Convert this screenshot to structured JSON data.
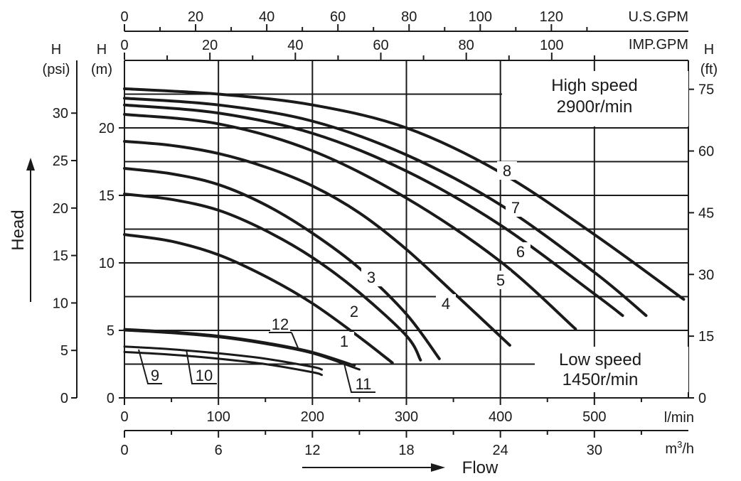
{
  "chart_data": {
    "type": "line",
    "x": {
      "unit": "l/min",
      "ticks": [
        "0",
        "100",
        "200",
        "300",
        "400",
        "500"
      ],
      "unit_label": "l/min",
      "range": [
        0,
        600
      ]
    },
    "secondary_x_axes": {
      "m3h": {
        "unit": "m³/h",
        "label_base": "m",
        "label_sup": "3",
        "label_tail": "/h",
        "ticks": [
          "0",
          "6",
          "12",
          "18",
          "24",
          "30"
        ]
      },
      "usgpm": {
        "unit": "U.S.GPM",
        "ticks": [
          "0",
          "20",
          "40",
          "60",
          "80",
          "100",
          "120"
        ]
      },
      "impgpm": {
        "unit": "IMP.GPM",
        "ticks": [
          "0",
          "20",
          "40",
          "60",
          "80",
          "100"
        ]
      }
    },
    "y": {
      "unit": "m",
      "label_top": "H",
      "label_unit": "(m)",
      "ticks": [
        "0",
        "5",
        "10",
        "15",
        "20"
      ],
      "range": [
        0,
        25
      ]
    },
    "secondary_y_axes": {
      "psi": {
        "label_top": "H",
        "label_unit": "(psi)",
        "ticks": [
          "0",
          "5",
          "10",
          "15",
          "20",
          "25",
          "30"
        ]
      },
      "ft": {
        "label_top": "H",
        "label_unit": "(ft)",
        "ticks": [
          "0",
          "15",
          "30",
          "45",
          "60",
          "75"
        ]
      }
    },
    "axis_titles": {
      "y": "Head",
      "x": "Flow"
    },
    "annotations": {
      "high_speed": {
        "title": "High speed",
        "rpm": "2900r/min"
      },
      "low_speed": {
        "title": "Low speed",
        "rpm": "1450r/min"
      }
    },
    "grid": true,
    "series": [
      {
        "name": "1",
        "x": [
          0,
          50,
          100,
          150,
          200,
          250,
          285
        ],
        "y": [
          12.1,
          11.6,
          10.6,
          9.0,
          7.0,
          4.5,
          2.6
        ]
      },
      {
        "name": "2",
        "x": [
          0,
          50,
          100,
          150,
          200,
          250,
          300,
          315
        ],
        "y": [
          15.1,
          14.7,
          13.9,
          12.4,
          10.4,
          7.8,
          4.6,
          2.8
        ]
      },
      {
        "name": "3",
        "x": [
          0,
          50,
          100,
          150,
          200,
          250,
          300,
          335
        ],
        "y": [
          17.0,
          16.6,
          15.8,
          14.3,
          12.2,
          9.6,
          6.2,
          2.9
        ]
      },
      {
        "name": "4",
        "x": [
          0,
          50,
          100,
          150,
          200,
          250,
          300,
          350,
          410
        ],
        "y": [
          19.0,
          18.7,
          18.1,
          17.1,
          15.7,
          13.7,
          11.0,
          7.8,
          3.9
        ]
      },
      {
        "name": "5",
        "x": [
          0,
          100,
          200,
          300,
          400,
          480
        ],
        "y": [
          21.0,
          20.3,
          18.3,
          14.8,
          10.1,
          5.1
        ]
      },
      {
        "name": "6",
        "x": [
          0,
          100,
          200,
          300,
          400,
          500,
          530
        ],
        "y": [
          21.7,
          21.1,
          19.6,
          16.8,
          12.8,
          7.7,
          6.1
        ]
      },
      {
        "name": "7",
        "x": [
          0,
          100,
          200,
          300,
          400,
          500,
          555
        ],
        "y": [
          22.2,
          21.7,
          20.5,
          18.0,
          14.3,
          9.3,
          6.1
        ]
      },
      {
        "name": "8",
        "x": [
          0,
          100,
          200,
          300,
          400,
          500,
          595
        ],
        "y": [
          22.9,
          22.5,
          21.7,
          20.0,
          16.7,
          12.1,
          7.3
        ]
      },
      {
        "name": "9",
        "x": [
          0,
          50,
          100,
          150,
          200,
          210
        ],
        "y": [
          3.4,
          3.2,
          2.9,
          2.5,
          1.9,
          1.7
        ]
      },
      {
        "name": "10",
        "x": [
          0,
          50,
          100,
          150,
          200,
          210
        ],
        "y": [
          3.8,
          3.6,
          3.3,
          2.9,
          2.3,
          2.1
        ]
      },
      {
        "name": "11",
        "x": [
          0,
          50,
          100,
          150,
          200,
          250
        ],
        "y": [
          5.0,
          4.8,
          4.5,
          4.0,
          3.3,
          2.1
        ]
      },
      {
        "name": "12",
        "x": [
          0,
          50,
          100,
          150,
          200,
          245
        ],
        "y": [
          5.1,
          4.9,
          4.6,
          4.1,
          3.4,
          2.4
        ]
      }
    ]
  }
}
